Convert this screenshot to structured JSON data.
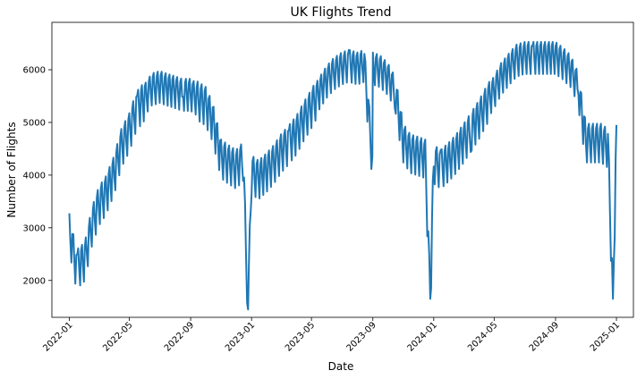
{
  "chart_data": {
    "type": "line",
    "title": "UK Flights Trend",
    "xlabel": "Date",
    "ylabel": "Number of Flights",
    "x_range": [
      "2021-11-27",
      "2025-02-04"
    ],
    "ylim": [
      1300,
      6900
    ],
    "yticks": [
      2000,
      3000,
      4000,
      5000,
      6000
    ],
    "xticks": [
      "2022-01",
      "2022-05",
      "2022-09",
      "2023-01",
      "2023-05",
      "2023-09",
      "2024-01",
      "2024-05",
      "2024-09",
      "2025-01"
    ],
    "grid": false,
    "legend": "none",
    "line_color": "#1f77b4",
    "series": [
      {
        "x": [
          "2022-01-01",
          "2022-01-15",
          "2022-02-01",
          "2022-02-15",
          "2022-03-01",
          "2022-03-15",
          "2022-04-01",
          "2022-04-15",
          "2022-05-01",
          "2022-05-15",
          "2022-06-01",
          "2022-06-15",
          "2022-07-01",
          "2022-07-15",
          "2022-08-01",
          "2022-08-15",
          "2022-09-01",
          "2022-09-15",
          "2022-10-01",
          "2022-10-15",
          "2022-11-01",
          "2022-11-15",
          "2022-12-01",
          "2022-12-15",
          "2022-12-25",
          "2023-01-01",
          "2023-01-15",
          "2023-02-01",
          "2023-02-15",
          "2023-03-01",
          "2023-03-15",
          "2023-04-01",
          "2023-04-15",
          "2023-05-01",
          "2023-05-15",
          "2023-06-01",
          "2023-06-15",
          "2023-07-01",
          "2023-07-15",
          "2023-08-01",
          "2023-08-15",
          "2023-08-31",
          "2023-09-01",
          "2023-09-15",
          "2023-10-01",
          "2023-10-15",
          "2023-11-01",
          "2023-11-15",
          "2023-12-01",
          "2023-12-15",
          "2023-12-25",
          "2024-01-01",
          "2024-01-15",
          "2024-02-01",
          "2024-02-15",
          "2024-03-01",
          "2024-03-15",
          "2024-04-01",
          "2024-04-15",
          "2024-05-01",
          "2024-05-15",
          "2024-06-01",
          "2024-06-15",
          "2024-07-01",
          "2024-07-15",
          "2024-08-01",
          "2024-08-15",
          "2024-09-01",
          "2024-09-15",
          "2024-10-01",
          "2024-10-15",
          "2024-11-01",
          "2024-11-15",
          "2024-12-01",
          "2024-12-15",
          "2024-12-25",
          "2025-01-01"
        ],
        "y": [
          3000,
          2300,
          2450,
          3100,
          3500,
          3700,
          4100,
          4600,
          4900,
          5300,
          5500,
          5700,
          5750,
          5700,
          5650,
          5600,
          5600,
          5500,
          5400,
          5100,
          4400,
          4300,
          4200,
          4350,
          1450,
          4100,
          4000,
          4150,
          4300,
          4500,
          4650,
          4850,
          5100,
          5350,
          5600,
          5850,
          6000,
          6100,
          6150,
          6100,
          6150,
          4350,
          6100,
          6050,
          5900,
          5650,
          4700,
          4500,
          4450,
          4400,
          1650,
          4300,
          4200,
          4350,
          4500,
          4700,
          4900,
          5150,
          5400,
          5650,
          5900,
          6100,
          6250,
          6300,
          6300,
          6300,
          6300,
          6300,
          6200,
          6050,
          5750,
          4700,
          4700,
          4700,
          4600,
          1650,
          4950
        ]
      }
    ]
  }
}
